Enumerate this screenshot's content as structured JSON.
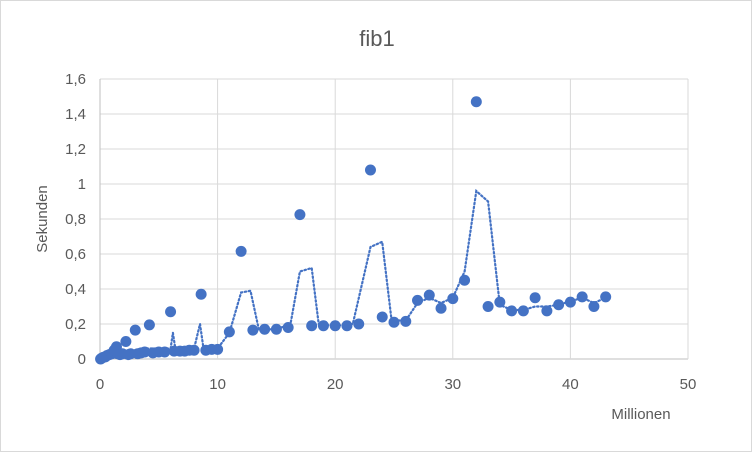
{
  "chart_data": {
    "type": "scatter",
    "title": "fib1",
    "xlabel": "Millionen",
    "ylabel": "Sekunden",
    "xlim": [
      0,
      50
    ],
    "ylim": [
      0,
      1.6
    ],
    "xticks": [
      "0",
      "10",
      "20",
      "30",
      "40",
      "50"
    ],
    "yticks": [
      "0",
      "0,2",
      "0,4",
      "0,6",
      "0,8",
      "1",
      "1,2",
      "1,4",
      "1,6"
    ],
    "grid": true,
    "legend": "none",
    "colors": {
      "points": "#4472c4",
      "trendline": "#4472c4",
      "grid": "#d9d9d9",
      "axis": "#bfbfbf"
    },
    "series": [
      {
        "points": [
          [
            0.05,
            0.0
          ],
          [
            0.15,
            0.005
          ],
          [
            0.3,
            0.01
          ],
          [
            0.45,
            0.012
          ],
          [
            0.6,
            0.02
          ],
          [
            0.8,
            0.025
          ],
          [
            1.0,
            0.03
          ],
          [
            1.2,
            0.05
          ],
          [
            1.4,
            0.07
          ],
          [
            1.5,
            0.03
          ],
          [
            1.7,
            0.025
          ],
          [
            1.9,
            0.03
          ],
          [
            2.2,
            0.1
          ],
          [
            2.4,
            0.025
          ],
          [
            2.6,
            0.03
          ],
          [
            3.0,
            0.165
          ],
          [
            3.2,
            0.03
          ],
          [
            3.5,
            0.035
          ],
          [
            3.8,
            0.04
          ],
          [
            4.2,
            0.195
          ],
          [
            4.5,
            0.035
          ],
          [
            5.0,
            0.04
          ],
          [
            5.5,
            0.04
          ],
          [
            6.0,
            0.27
          ],
          [
            6.3,
            0.045
          ],
          [
            6.8,
            0.045
          ],
          [
            7.2,
            0.045
          ],
          [
            7.6,
            0.05
          ],
          [
            8.0,
            0.05
          ],
          [
            8.6,
            0.37
          ],
          [
            9.0,
            0.05
          ],
          [
            9.5,
            0.055
          ],
          [
            10.0,
            0.055
          ],
          [
            11.0,
            0.155
          ],
          [
            12.0,
            0.615
          ],
          [
            13.0,
            0.165
          ],
          [
            14.0,
            0.17
          ],
          [
            15.0,
            0.17
          ],
          [
            16.0,
            0.18
          ],
          [
            17.0,
            0.825
          ],
          [
            18.0,
            0.19
          ],
          [
            19.0,
            0.19
          ],
          [
            20.0,
            0.19
          ],
          [
            21.0,
            0.19
          ],
          [
            22.0,
            0.2
          ],
          [
            23.0,
            1.08
          ],
          [
            24.0,
            0.24
          ],
          [
            25.0,
            0.21
          ],
          [
            26.0,
            0.215
          ],
          [
            27.0,
            0.335
          ],
          [
            28.0,
            0.365
          ],
          [
            29.0,
            0.29
          ],
          [
            30.0,
            0.345
          ],
          [
            31.0,
            0.45
          ],
          [
            32.0,
            1.47
          ],
          [
            33.0,
            0.3
          ],
          [
            34.0,
            0.325
          ],
          [
            35.0,
            0.275
          ],
          [
            36.0,
            0.275
          ],
          [
            37.0,
            0.35
          ],
          [
            38.0,
            0.275
          ],
          [
            39.0,
            0.31
          ],
          [
            40.0,
            0.325
          ],
          [
            41.0,
            0.355
          ],
          [
            42.0,
            0.3
          ],
          [
            43.0,
            0.355
          ]
        ]
      }
    ],
    "trendline": [
      [
        0.0,
        0.0
      ],
      [
        1.0,
        0.03
      ],
      [
        2.0,
        0.04
      ],
      [
        3.0,
        0.05
      ],
      [
        4.0,
        0.06
      ],
      [
        5.0,
        0.06
      ],
      [
        6.0,
        0.06
      ],
      [
        6.2,
        0.15
      ],
      [
        6.4,
        0.06
      ],
      [
        8.0,
        0.06
      ],
      [
        8.5,
        0.2
      ],
      [
        8.8,
        0.06
      ],
      [
        10.0,
        0.06
      ],
      [
        11.0,
        0.15
      ],
      [
        12.0,
        0.38
      ],
      [
        12.8,
        0.39
      ],
      [
        13.5,
        0.17
      ],
      [
        15.0,
        0.17
      ],
      [
        16.2,
        0.2
      ],
      [
        17.0,
        0.5
      ],
      [
        18.0,
        0.52
      ],
      [
        18.6,
        0.2
      ],
      [
        20.0,
        0.19
      ],
      [
        21.5,
        0.2
      ],
      [
        23.0,
        0.64
      ],
      [
        24.0,
        0.67
      ],
      [
        24.8,
        0.22
      ],
      [
        26.0,
        0.22
      ],
      [
        27.0,
        0.32
      ],
      [
        28.0,
        0.35
      ],
      [
        29.0,
        0.32
      ],
      [
        30.0,
        0.35
      ],
      [
        31.0,
        0.5
      ],
      [
        32.0,
        0.96
      ],
      [
        33.0,
        0.9
      ],
      [
        34.0,
        0.31
      ],
      [
        35.0,
        0.28
      ],
      [
        36.0,
        0.28
      ],
      [
        37.0,
        0.3
      ],
      [
        38.0,
        0.3
      ],
      [
        39.0,
        0.31
      ],
      [
        40.0,
        0.33
      ],
      [
        41.0,
        0.35
      ],
      [
        42.0,
        0.32
      ],
      [
        43.0,
        0.35
      ]
    ]
  }
}
